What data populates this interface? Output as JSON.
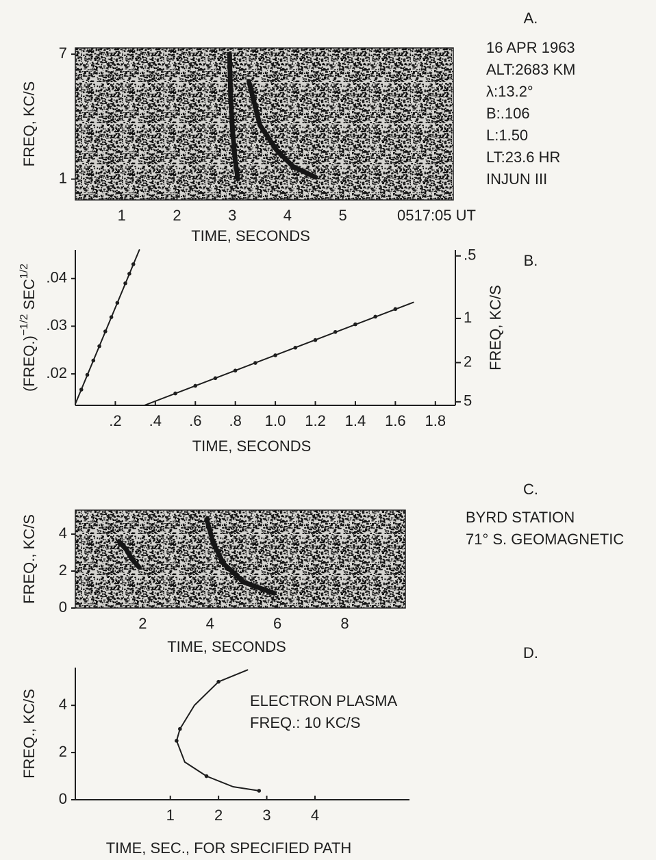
{
  "chart_data": [
    {
      "type": "spectrogram",
      "label": "A.",
      "xlabel": "TIME, SECONDS",
      "ylabel": "FREQ, KC/S",
      "xlim": [
        0.16,
        7.0
      ],
      "ylim": [
        0,
        7.3
      ],
      "xticks": [
        1,
        2,
        3,
        4,
        5
      ],
      "yticks": [
        1,
        7
      ],
      "annotations": [
        "16 APR 1963",
        "ALT:2683 KM",
        "λ:13.2°",
        "B:.106",
        "L:1.50",
        "LT:23.6 HR",
        "INJUN III"
      ],
      "time_stamp": "0517:05 UT",
      "color": "#161616",
      "series": [
        {
          "x": [
            2.95,
            2.97,
            3.0,
            3.05,
            3.1
          ],
          "values": [
            7,
            5,
            3.5,
            2,
            1
          ]
        },
        {
          "x": [
            3.3,
            3.5,
            3.8,
            4.1,
            4.5
          ],
          "values": [
            5.7,
            3.6,
            2.4,
            1.6,
            1.1
          ]
        }
      ]
    },
    {
      "type": "scatter",
      "label": "B.",
      "xlabel": "TIME, SECONDS",
      "ylabel": [
        "(FREQ.)",
        "−1/2",
        " SEC",
        "1/2"
      ],
      "y2label": "FREQ, KC/S",
      "xlim": [
        0,
        1.9
      ],
      "ylim": [
        0.0134,
        0.046
      ],
      "xticks": [
        {
          "value": 0.2,
          "label": ".2"
        },
        {
          "value": 0.4,
          "label": ".4"
        },
        {
          "value": 0.6,
          "label": ".6"
        },
        {
          "value": 0.8,
          "label": ".8"
        },
        {
          "value": 1.0,
          "label": "1.0"
        },
        1.2,
        1.4,
        1.6,
        1.8
      ],
      "yticks": [
        {
          "value": 0.02,
          "label": ".02"
        },
        {
          "value": 0.03,
          "label": ".03"
        },
        {
          "value": 0.04,
          "label": ".04"
        }
      ],
      "y2lim": [
        5.57,
        0.473
      ],
      "y2scale": "inverse-sqrt",
      "y2ticks": [
        {
          "value": 0.5,
          "label": ".5"
        },
        1,
        2,
        5
      ],
      "color": "#1e1e1e",
      "series": [
        {
          "mode": "line",
          "x": [
            0,
            0.32
          ],
          "values": [
            0.0137,
            0.046
          ]
        },
        {
          "mode": "markers",
          "x": [
            0.03,
            0.06,
            0.09,
            0.12,
            0.15,
            0.18,
            0.21,
            0.25,
            0.27,
            0.29
          ],
          "values": [
            0.0167,
            0.0198,
            0.0228,
            0.0258,
            0.0289,
            0.0319,
            0.0349,
            0.039,
            0.041,
            0.043
          ]
        },
        {
          "mode": "line",
          "x": [
            0.345,
            1.69
          ],
          "values": [
            0.0134,
            0.035
          ]
        },
        {
          "mode": "markers",
          "x": [
            0.5,
            0.6,
            0.7,
            0.8,
            0.9,
            1.0,
            1.1,
            1.2,
            1.3,
            1.4,
            1.5,
            1.6
          ],
          "values": [
            0.0159,
            0.0175,
            0.0191,
            0.0207,
            0.0223,
            0.0239,
            0.0255,
            0.0271,
            0.0288,
            0.0304,
            0.032,
            0.0336
          ]
        }
      ]
    },
    {
      "type": "spectrogram",
      "label": "C.",
      "xlabel": "TIME, SECONDS",
      "ylabel": "FREQ., KC/S",
      "xlim": [
        0,
        9.8
      ],
      "ylim": [
        0,
        5.3
      ],
      "xticks": [
        2,
        4,
        6,
        8
      ],
      "yticks": [
        0,
        2,
        4
      ],
      "annotations": [
        "BYRD STATION",
        "71° S. GEOMAGNETIC"
      ],
      "color": "#161616",
      "series": [
        {
          "x": [
            1.3,
            1.5,
            1.7,
            1.9
          ],
          "values": [
            3.6,
            3.2,
            2.6,
            2.2
          ]
        },
        {
          "x": [
            3.9,
            4.1,
            4.4,
            5.0,
            5.9
          ],
          "values": [
            4.8,
            3.5,
            2.4,
            1.4,
            0.8
          ]
        }
      ]
    },
    {
      "type": "line",
      "label": "D.",
      "xlabel": "TIME, SEC., FOR SPECIFIED PATH",
      "ylabel": "FREQ., KC/S",
      "xlim": [
        -0.97,
        5.96
      ],
      "ylim": [
        0,
        5.6
      ],
      "xticks": [
        1,
        2,
        3,
        4
      ],
      "yticks": [
        0,
        2,
        4
      ],
      "annotations": [
        "ELECTRON PLASMA",
        "FREQ.: 10 KC/S"
      ],
      "color": "#1e1e1e",
      "series": [
        {
          "mode": "line",
          "x": [
            2.84,
            2.3,
            1.75,
            1.3,
            1.13,
            1.2,
            1.5,
            2.0,
            2.6
          ],
          "values": [
            0.38,
            0.55,
            1.0,
            1.6,
            2.5,
            3.0,
            4.0,
            5.0,
            5.5
          ]
        },
        {
          "mode": "markers",
          "x": [
            2.84,
            1.75,
            1.13,
            1.2,
            2.0
          ],
          "values": [
            0.38,
            1.0,
            2.5,
            3.0,
            5.0
          ]
        }
      ]
    }
  ]
}
